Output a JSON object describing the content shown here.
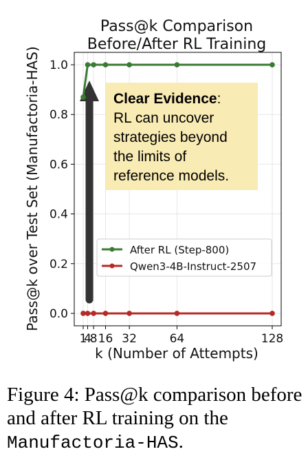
{
  "chart_data": {
    "type": "line",
    "title_line1": "Pass@k Comparison",
    "title_line2": "Before/After RL Training",
    "xlabel": "k (Number of Attempts)",
    "ylabel": "Pass@k over Test Set (Manufactoria-HAS)",
    "xlim": [
      -5,
      134
    ],
    "ylim": [
      -0.05,
      1.05
    ],
    "x_ticks": [
      1,
      4,
      8,
      16,
      32,
      64,
      128
    ],
    "x_tick_labels": [
      "1",
      "4",
      "8",
      "16",
      "32",
      "64",
      "128"
    ],
    "y_ticks": [
      0.0,
      0.2,
      0.4,
      0.6,
      0.8,
      1.0
    ],
    "y_tick_labels": [
      "0.0",
      "0.2",
      "0.4",
      "0.6",
      "0.8",
      "1.0"
    ],
    "grid": true,
    "legend_position": "lower-right",
    "series": [
      {
        "name": "After RL (Step-800)",
        "color": "#3a7a33",
        "x": [
          1,
          4,
          8,
          16,
          32,
          64,
          128
        ],
        "values": [
          0.87,
          1.0,
          1.0,
          1.0,
          1.0,
          1.0,
          1.0
        ]
      },
      {
        "name": "Qwen3-4B-Instruct-2507",
        "color": "#b52a25",
        "x": [
          1,
          4,
          8,
          16,
          32,
          64,
          128
        ],
        "values": [
          0.0,
          0.0,
          0.0,
          0.0,
          0.0,
          0.0,
          0.0
        ]
      }
    ],
    "annotation": {
      "bold": "Clear Evidence",
      "rest_first": ":",
      "lines": [
        "RL can uncover",
        "strategies beyond",
        "the limits of",
        "reference models."
      ]
    }
  },
  "caption": {
    "prefix": "Figure 4:  Pass@k comparison before and after RL training on the ",
    "mono": "Manufactoria-HAS",
    "suffix": "."
  }
}
